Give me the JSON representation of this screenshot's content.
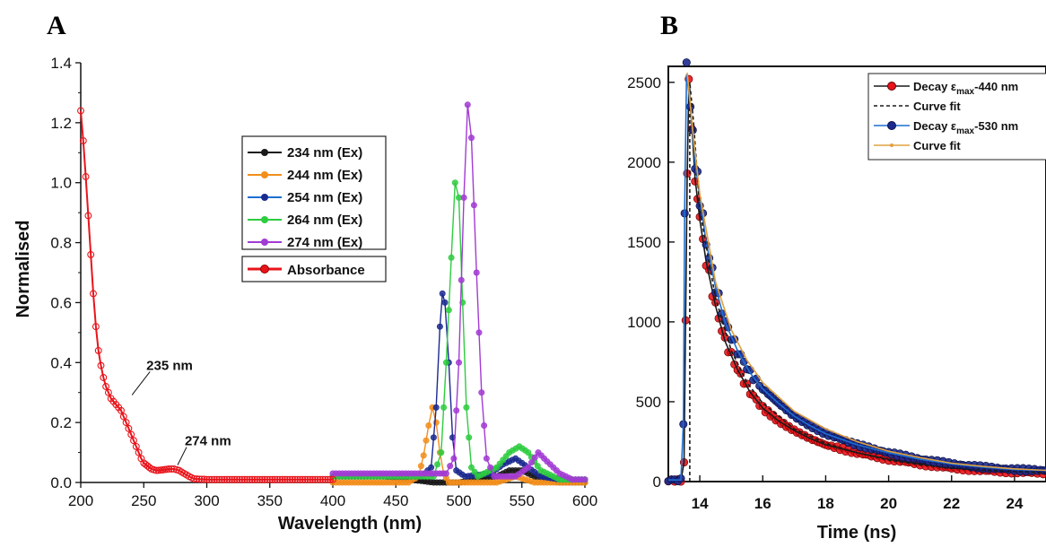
{
  "chart_data": [
    {
      "panel": "A",
      "type": "line",
      "xlabel": "Wavelength (nm)",
      "ylabel": "Normalised",
      "xlim": [
        200,
        600
      ],
      "ylim": [
        0.0,
        1.4
      ],
      "xticks": [
        200,
        250,
        300,
        350,
        400,
        450,
        500,
        550,
        600
      ],
      "yticks": [
        0.0,
        0.2,
        0.4,
        0.6,
        0.8,
        1.0,
        1.2,
        1.4
      ],
      "legend": "top-center",
      "annotations": [
        {
          "text": "235 nm",
          "x": 235,
          "y": 0.28
        },
        {
          "text": "274 nm",
          "x": 274,
          "y": 0.04
        }
      ],
      "series": [
        {
          "name": "Absorbance",
          "color": "#e8141b",
          "points": [
            [
              200,
              1.24
            ],
            [
              202,
              1.14
            ],
            [
              204,
              1.02
            ],
            [
              206,
              0.89
            ],
            [
              208,
              0.76
            ],
            [
              210,
              0.63
            ],
            [
              212,
              0.52
            ],
            [
              214,
              0.44
            ],
            [
              216,
              0.39
            ],
            [
              218,
              0.35
            ],
            [
              220,
              0.32
            ],
            [
              222,
              0.3
            ],
            [
              224,
              0.28
            ],
            [
              226,
              0.27
            ],
            [
              228,
              0.26
            ],
            [
              230,
              0.25
            ],
            [
              232,
              0.24
            ],
            [
              234,
              0.22
            ],
            [
              236,
              0.2
            ],
            [
              238,
              0.18
            ],
            [
              240,
              0.16
            ],
            [
              242,
              0.14
            ],
            [
              244,
              0.12
            ],
            [
              246,
              0.1
            ],
            [
              248,
              0.08
            ],
            [
              250,
              0.065
            ],
            [
              253,
              0.055
            ],
            [
              256,
              0.045
            ],
            [
              260,
              0.04
            ],
            [
              265,
              0.042
            ],
            [
              270,
              0.045
            ],
            [
              274,
              0.045
            ],
            [
              278,
              0.04
            ],
            [
              282,
              0.03
            ],
            [
              286,
              0.02
            ],
            [
              290,
              0.012
            ],
            [
              300,
              0.01
            ],
            [
              350,
              0.01
            ],
            [
              400,
              0.01
            ]
          ]
        },
        {
          "name": "234 nm (Ex)",
          "color": "#1a1a1a",
          "points": [
            [
              400,
              0.02
            ],
            [
              440,
              0.02
            ],
            [
              460,
              0.01
            ],
            [
              480,
              0.0
            ],
            [
              500,
              0.0
            ],
            [
              530,
              0.02
            ],
            [
              540,
              0.04
            ],
            [
              550,
              0.04
            ],
            [
              560,
              0.02
            ],
            [
              580,
              0.0
            ],
            [
              600,
              0.0
            ]
          ]
        },
        {
          "name": "244 nm (Ex)",
          "color": "#f28e1c",
          "points": [
            [
              400,
              0.0
            ],
            [
              460,
              0.0
            ],
            [
              468,
              0.02
            ],
            [
              472,
              0.09
            ],
            [
              476,
              0.19
            ],
            [
              479,
              0.25
            ],
            [
              482,
              0.2
            ],
            [
              485,
              0.1
            ],
            [
              488,
              0.03
            ],
            [
              492,
              0.0
            ],
            [
              530,
              0.0
            ],
            [
              545,
              0.02
            ],
            [
              560,
              0.0
            ],
            [
              600,
              0.0
            ]
          ]
        },
        {
          "name": "254 nm (Ex)",
          "color": "#1b2a8f",
          "points": [
            [
              400,
              0.02
            ],
            [
              470,
              0.02
            ],
            [
              478,
              0.05
            ],
            [
              482,
              0.25
            ],
            [
              485,
              0.52
            ],
            [
              487,
              0.63
            ],
            [
              489,
              0.6
            ],
            [
              492,
              0.4
            ],
            [
              495,
              0.15
            ],
            [
              498,
              0.04
            ],
            [
              505,
              0.02
            ],
            [
              525,
              0.03
            ],
            [
              535,
              0.06
            ],
            [
              545,
              0.08
            ],
            [
              555,
              0.05
            ],
            [
              565,
              0.02
            ],
            [
              580,
              0.01
            ],
            [
              600,
              0.01
            ]
          ]
        },
        {
          "name": "264 nm (Ex)",
          "color": "#2ecc40",
          "points": [
            [
              400,
              0.02
            ],
            [
              480,
              0.02
            ],
            [
              486,
              0.1
            ],
            [
              490,
              0.4
            ],
            [
              494,
              0.75
            ],
            [
              497,
              1.0
            ],
            [
              500,
              0.95
            ],
            [
              503,
              0.6
            ],
            [
              506,
              0.25
            ],
            [
              510,
              0.05
            ],
            [
              515,
              0.02
            ],
            [
              530,
              0.05
            ],
            [
              540,
              0.1
            ],
            [
              548,
              0.12
            ],
            [
              555,
              0.1
            ],
            [
              565,
              0.04
            ],
            [
              580,
              0.01
            ],
            [
              600,
              0.01
            ]
          ]
        },
        {
          "name": "274 nm (Ex)",
          "color": "#a23bd4",
          "points": [
            [
              400,
              0.03
            ],
            [
              490,
              0.03
            ],
            [
              496,
              0.08
            ],
            [
              500,
              0.4
            ],
            [
              504,
              0.95
            ],
            [
              507,
              1.26
            ],
            [
              510,
              1.15
            ],
            [
              514,
              0.7
            ],
            [
              518,
              0.3
            ],
            [
              522,
              0.08
            ],
            [
              528,
              0.02
            ],
            [
              545,
              0.02
            ],
            [
              555,
              0.05
            ],
            [
              563,
              0.1
            ],
            [
              570,
              0.07
            ],
            [
              580,
              0.03
            ],
            [
              590,
              0.01
            ],
            [
              600,
              0.01
            ]
          ]
        }
      ]
    },
    {
      "panel": "B",
      "type": "line",
      "xlabel": "Time (ns)",
      "ylabel": "",
      "xlim": [
        13,
        25
      ],
      "ylim": [
        0,
        2600
      ],
      "xticks": [
        14,
        16,
        18,
        20,
        22,
        24
      ],
      "yticks": [
        0,
        500,
        1000,
        1500,
        2000,
        2500
      ],
      "legend": "top-right",
      "series": [
        {
          "name": "Decay εmax-440 nm",
          "color": "#e8141b",
          "line_color": "#1a1a1a",
          "points": [
            [
              13,
              5
            ],
            [
              13.4,
              5
            ],
            [
              13.5,
              120
            ],
            [
              13.55,
              1040
            ],
            [
              13.6,
              1900
            ],
            [
              13.65,
              2470
            ],
            [
              13.75,
              2220
            ],
            [
              13.85,
              1900
            ],
            [
              14,
              1640
            ],
            [
              14.2,
              1380
            ],
            [
              14.5,
              1100
            ],
            [
              14.8,
              880
            ],
            [
              15.2,
              700
            ],
            [
              15.6,
              560
            ],
            [
              16,
              460
            ],
            [
              16.5,
              380
            ],
            [
              17,
              320
            ],
            [
              17.5,
              270
            ],
            [
              18,
              230
            ],
            [
              19,
              180
            ],
            [
              20,
              140
            ],
            [
              21,
              110
            ],
            [
              22,
              85
            ],
            [
              23,
              70
            ],
            [
              24,
              60
            ],
            [
              25,
              55
            ]
          ]
        },
        {
          "name": "Curve fit",
          "color": "#1a1a1a",
          "dashed": true,
          "points": [
            [
              13.68,
              0
            ],
            [
              13.68,
              2500
            ],
            [
              13.8,
              2250
            ],
            [
              14,
              1700
            ],
            [
              14.5,
              1150
            ],
            [
              15,
              820
            ],
            [
              15.5,
              620
            ],
            [
              16,
              490
            ],
            [
              17,
              330
            ],
            [
              18,
              240
            ],
            [
              19,
              180
            ],
            [
              20,
              135
            ],
            [
              21,
              105
            ],
            [
              22,
              85
            ],
            [
              23,
              70
            ],
            [
              25,
              55
            ]
          ]
        },
        {
          "name": "Decay εmax-530 nm",
          "color": "#1b2a8f",
          "line_color": "#1f6fd0",
          "points": [
            [
              13,
              10
            ],
            [
              13.4,
              10
            ],
            [
              13.48,
              370
            ],
            [
              13.52,
              1700
            ],
            [
              13.58,
              2550
            ],
            [
              13.7,
              2350
            ],
            [
              13.85,
              2000
            ],
            [
              14,
              1780
            ],
            [
              14.2,
              1500
            ],
            [
              14.5,
              1220
            ],
            [
              14.8,
              1000
            ],
            [
              15.2,
              820
            ],
            [
              15.6,
              680
            ],
            [
              16,
              580
            ],
            [
              16.5,
              490
            ],
            [
              17,
              410
            ],
            [
              17.5,
              350
            ],
            [
              18,
              300
            ],
            [
              19,
              230
            ],
            [
              20,
              180
            ],
            [
              21,
              140
            ],
            [
              22,
              110
            ],
            [
              23,
              90
            ],
            [
              24,
              75
            ],
            [
              25,
              70
            ]
          ]
        },
        {
          "name": "Curve fit",
          "color": "#e0a040",
          "points": [
            [
              13.6,
              2560
            ],
            [
              13.8,
              2150
            ],
            [
              14,
              1800
            ],
            [
              14.5,
              1250
            ],
            [
              15,
              950
            ],
            [
              15.5,
              760
            ],
            [
              16,
              620
            ],
            [
              17,
              440
            ],
            [
              18,
              330
            ],
            [
              19,
              250
            ],
            [
              20,
              190
            ],
            [
              21,
              150
            ],
            [
              22,
              115
            ],
            [
              23,
              95
            ],
            [
              24,
              80
            ],
            [
              25,
              70
            ]
          ]
        }
      ]
    }
  ],
  "panels": {
    "a": {
      "letter": "A"
    },
    "b": {
      "letter": "B"
    }
  },
  "legend_a": {
    "items": [
      "234 nm (Ex)",
      "244 nm (Ex)",
      "254 nm (Ex)",
      "264 nm (Ex)",
      "274 nm (Ex)"
    ],
    "absorbance": "Absorbance"
  },
  "legend_b": {
    "decay1_prefix": "Decay ε",
    "decay1_sub": "max",
    "decay1_suffix": "-440 nm",
    "fit1": "Curve fit",
    "decay2_prefix": "Decay ε",
    "decay2_sub": "max",
    "decay2_suffix": "-530 nm",
    "fit2": "Curve fit"
  }
}
